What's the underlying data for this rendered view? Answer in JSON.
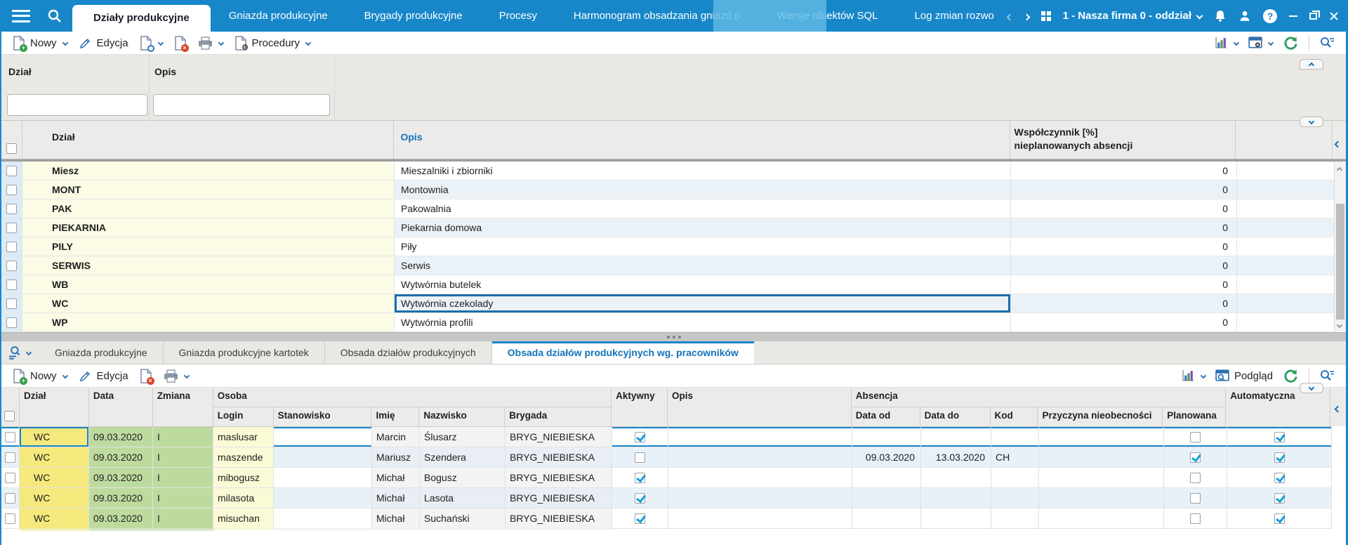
{
  "topbar": {
    "tabs": [
      {
        "label": "Działy produkcyjne",
        "active": true
      },
      {
        "label": "Gniazda produkcyjne",
        "active": false
      },
      {
        "label": "Brygady produkcyjne",
        "active": false
      },
      {
        "label": "Procesy",
        "active": false
      },
      {
        "label": "Harmonogram obsadzania gniazd p",
        "active": false
      },
      {
        "label": "Wersje obiektów SQL",
        "active": false
      },
      {
        "label": "Log zmian rozwo",
        "active": false
      }
    ],
    "company_selector": "1 - Nasza firma 0 - oddział",
    "help_glyph": "?"
  },
  "toolbar_main": {
    "new_label": "Nowy",
    "edit_label": "Edycja",
    "procedures_label": "Procedury"
  },
  "filter_panel": {
    "dzial_label": "Dział",
    "opis_label": "Opis",
    "dzial_value": "",
    "opis_value": ""
  },
  "main_grid": {
    "headers": {
      "dzial": "Dział",
      "opis": "Opis",
      "wsp_line1": "Współczynnik [%]",
      "wsp_line2": "nieplanowanych absencji"
    },
    "rows": [
      {
        "dzial": "Miesz",
        "opis": "Mieszalniki i zbiorniki",
        "wsp": "0",
        "selected": false
      },
      {
        "dzial": "MONT",
        "opis": "Montownia",
        "wsp": "0",
        "selected": false
      },
      {
        "dzial": "PAK",
        "opis": "Pakowalnia",
        "wsp": "0",
        "selected": false
      },
      {
        "dzial": "PIEKARNIA",
        "opis": "Piekarnia domowa",
        "wsp": "0",
        "selected": false
      },
      {
        "dzial": "PILY",
        "opis": "Piły",
        "wsp": "0",
        "selected": false
      },
      {
        "dzial": "SERWIS",
        "opis": "Serwis",
        "wsp": "0",
        "selected": false
      },
      {
        "dzial": "WB",
        "opis": "Wytwórnia butelek",
        "wsp": "0",
        "selected": false
      },
      {
        "dzial": "WC",
        "opis": "Wytwórnia czekolady",
        "wsp": "0",
        "selected": true
      },
      {
        "dzial": "WP",
        "opis": "Wytwórnia profili",
        "wsp": "0",
        "selected": false
      }
    ]
  },
  "bottom_panel": {
    "tabs": [
      {
        "label": "Gniazda produkcyjne",
        "active": false
      },
      {
        "label": "Gniazda produkcyjne kartotek",
        "active": false
      },
      {
        "label": "Obsada działów produkcyjnych",
        "active": false
      },
      {
        "label": "Obsada działów produkcyjnych wg. pracowników",
        "active": true
      }
    ],
    "toolbar": {
      "new_label": "Nowy",
      "edit_label": "Edycja",
      "preview_label": "Podgląd"
    },
    "grid": {
      "headers": {
        "dzial": "Dział",
        "data": "Data",
        "zmiana": "Zmiana",
        "osoba": "Osoba",
        "login": "Login",
        "stanowisko": "Stanowisko",
        "imie": "Imię",
        "nazwisko": "Nazwisko",
        "brygada": "Brygada",
        "aktywny": "Aktywny",
        "opis": "Opis",
        "absencja": "Absencja",
        "data_od": "Data od",
        "data_do": "Data do",
        "kod": "Kod",
        "przyczyna": "Przyczyna nieobecności",
        "planowana": "Planowana",
        "automatyczna": "Automatyczna"
      },
      "rows": [
        {
          "dzial": "WC",
          "data": "09.03.2020",
          "zmiana": "I",
          "login": "maslusar",
          "stanowisko": "",
          "imie": "Marcin",
          "nazwisko": "Ślusarz",
          "brygada": "BRYG_NIEBIESKA",
          "aktywny": true,
          "opis": "",
          "data_od": "",
          "data_do": "",
          "kod": "",
          "przyczyna": "",
          "planowana": false,
          "automatyczna": true,
          "selected": true
        },
        {
          "dzial": "WC",
          "data": "09.03.2020",
          "zmiana": "I",
          "login": "maszende",
          "stanowisko": "",
          "imie": "Mariusz",
          "nazwisko": "Szendera",
          "brygada": "BRYG_NIEBIESKA",
          "aktywny": false,
          "opis": "",
          "data_od": "09.03.2020",
          "data_do": "13.03.2020",
          "kod": "CH",
          "przyczyna": "",
          "planowana": true,
          "automatyczna": true,
          "selected": false
        },
        {
          "dzial": "WC",
          "data": "09.03.2020",
          "zmiana": "I",
          "login": "mibogusz",
          "stanowisko": "",
          "imie": "Michał",
          "nazwisko": "Bogusz",
          "brygada": "BRYG_NIEBIESKA",
          "aktywny": true,
          "opis": "",
          "data_od": "",
          "data_do": "",
          "kod": "",
          "przyczyna": "",
          "planowana": false,
          "automatyczna": true,
          "selected": false
        },
        {
          "dzial": "WC",
          "data": "09.03.2020",
          "zmiana": "I",
          "login": "milasota",
          "stanowisko": "",
          "imie": "Michał",
          "nazwisko": "Lasota",
          "brygada": "BRYG_NIEBIESKA",
          "aktywny": true,
          "opis": "",
          "data_od": "",
          "data_do": "",
          "kod": "",
          "przyczyna": "",
          "planowana": false,
          "automatyczna": true,
          "selected": false
        },
        {
          "dzial": "WC",
          "data": "09.03.2020",
          "zmiana": "I",
          "login": "misuchan",
          "stanowisko": "",
          "imie": "Michał",
          "nazwisko": "Suchański",
          "brygada": "BRYG_NIEBIESKA",
          "aktywny": true,
          "opis": "",
          "data_od": "",
          "data_do": "",
          "kod": "",
          "przyczyna": "",
          "planowana": false,
          "automatyczna": true,
          "selected": false
        }
      ]
    }
  },
  "icons": {
    "hamburger": "menu",
    "search": "magnifier",
    "refresh": "circular-arrows",
    "chart": "bar-chart",
    "printer": "printer",
    "help_glyph": "?"
  }
}
